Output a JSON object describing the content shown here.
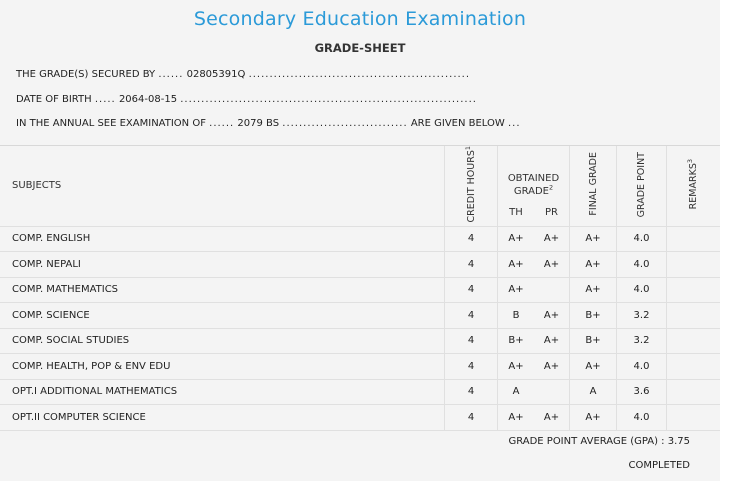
{
  "header": {
    "title": "Secondary Education Examination",
    "subtitle": "GRADE-SHEET"
  },
  "info": {
    "secured_by_label": "THE GRADE(S) SECURED BY",
    "secured_by_value": "02805391Q",
    "dob_label": "DATE OF BIRTH",
    "dob_value": "2064-08-15",
    "exam_label": "IN THE ANNUAL SEE EXAMINATION OF",
    "exam_value": "2079 BS",
    "exam_suffix": "ARE GIVEN BELOW"
  },
  "table": {
    "headers": {
      "subjects": "SUBJECTS",
      "credit_hours": "CREDIT HOURS",
      "credit_sup": "1",
      "obtained_grade_line1": "OBTAINED",
      "obtained_grade_line2": "GRADE",
      "obtained_sup": "2",
      "th": "TH",
      "pr": "PR",
      "final_grade": "FINAL GRADE",
      "grade_point": "GRADE POINT",
      "remarks": "REMARKS",
      "remarks_sup": "3"
    },
    "rows": [
      {
        "subject": "COMP. ENGLISH",
        "credit": "4",
        "th": "A+",
        "pr": "A+",
        "final": "A+",
        "gp": "4.0",
        "remarks": ""
      },
      {
        "subject": "COMP. NEPALI",
        "credit": "4",
        "th": "A+",
        "pr": "A+",
        "final": "A+",
        "gp": "4.0",
        "remarks": ""
      },
      {
        "subject": "COMP. MATHEMATICS",
        "credit": "4",
        "th": "A+",
        "pr": "",
        "final": "A+",
        "gp": "4.0",
        "remarks": ""
      },
      {
        "subject": "COMP. SCIENCE",
        "credit": "4",
        "th": "B",
        "pr": "A+",
        "final": "B+",
        "gp": "3.2",
        "remarks": ""
      },
      {
        "subject": "COMP. SOCIAL STUDIES",
        "credit": "4",
        "th": "B+",
        "pr": "A+",
        "final": "B+",
        "gp": "3.2",
        "remarks": ""
      },
      {
        "subject": "COMP. HEALTH, POP & ENV EDU",
        "credit": "4",
        "th": "A+",
        "pr": "A+",
        "final": "A+",
        "gp": "4.0",
        "remarks": ""
      },
      {
        "subject": "OPT.I ADDITIONAL MATHEMATICS",
        "credit": "4",
        "th": "A",
        "pr": "",
        "final": "A",
        "gp": "3.6",
        "remarks": ""
      },
      {
        "subject": "OPT.II COMPUTER SCIENCE",
        "credit": "4",
        "th": "A+",
        "pr": "A+",
        "final": "A+",
        "gp": "4.0",
        "remarks": ""
      }
    ]
  },
  "footer": {
    "gpa_label": "GRADE POINT AVERAGE (GPA) :",
    "gpa_value": "3.75",
    "status": "COMPLETED"
  },
  "colors": {
    "title": "#2b9ad8",
    "background": "#f4f4f4"
  }
}
